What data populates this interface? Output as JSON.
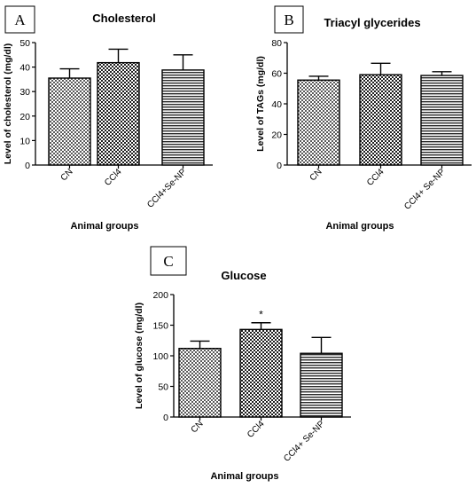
{
  "chart_data": [
    {
      "type": "bar",
      "panel_label": "A",
      "title": "Cholesterol",
      "xlabel": "Animal groups",
      "ylabel": "Level of cholesterol (mg/dl)",
      "categories": [
        "CN",
        "CCl4",
        "CCl4+Se-NP"
      ],
      "values": [
        35.5,
        41.8,
        38.8
      ],
      "errors": [
        3.8,
        5.5,
        6.2
      ],
      "annotations": [
        "",
        "",
        ""
      ],
      "ylim": [
        0,
        50
      ],
      "yticks": [
        0,
        10,
        20,
        30,
        40,
        50
      ],
      "patterns": [
        "checker-small",
        "checker",
        "hstripe"
      ],
      "grid": false
    },
    {
      "type": "bar",
      "panel_label": "B",
      "title": "Triacyl glycerides",
      "xlabel": "Animal groups",
      "ylabel": "Level of TAGs (mg/dl)",
      "categories": [
        "CN",
        "CCl4",
        "CCl4+ Se-NP"
      ],
      "values": [
        55.5,
        59.0,
        58.5
      ],
      "errors": [
        2.5,
        7.5,
        2.5
      ],
      "annotations": [
        "",
        "",
        ""
      ],
      "ylim": [
        0,
        80
      ],
      "yticks": [
        0,
        20,
        40,
        60,
        80
      ],
      "patterns": [
        "checker-small",
        "checker",
        "hstripe"
      ],
      "grid": false
    },
    {
      "type": "bar",
      "panel_label": "C",
      "title": "Glucose",
      "xlabel": "Animal groups",
      "ylabel": "Level of glucose (mg/dl)",
      "categories": [
        "CN",
        "CCl4",
        "CCl4+ Se-NP"
      ],
      "values": [
        112,
        143,
        104
      ],
      "errors": [
        12,
        11,
        26
      ],
      "annotations": [
        "",
        "*",
        ""
      ],
      "ylim": [
        0,
        200
      ],
      "yticks": [
        0,
        50,
        100,
        150,
        200
      ],
      "patterns": [
        "checker-small",
        "checker",
        "hstripe"
      ],
      "grid": false
    }
  ]
}
